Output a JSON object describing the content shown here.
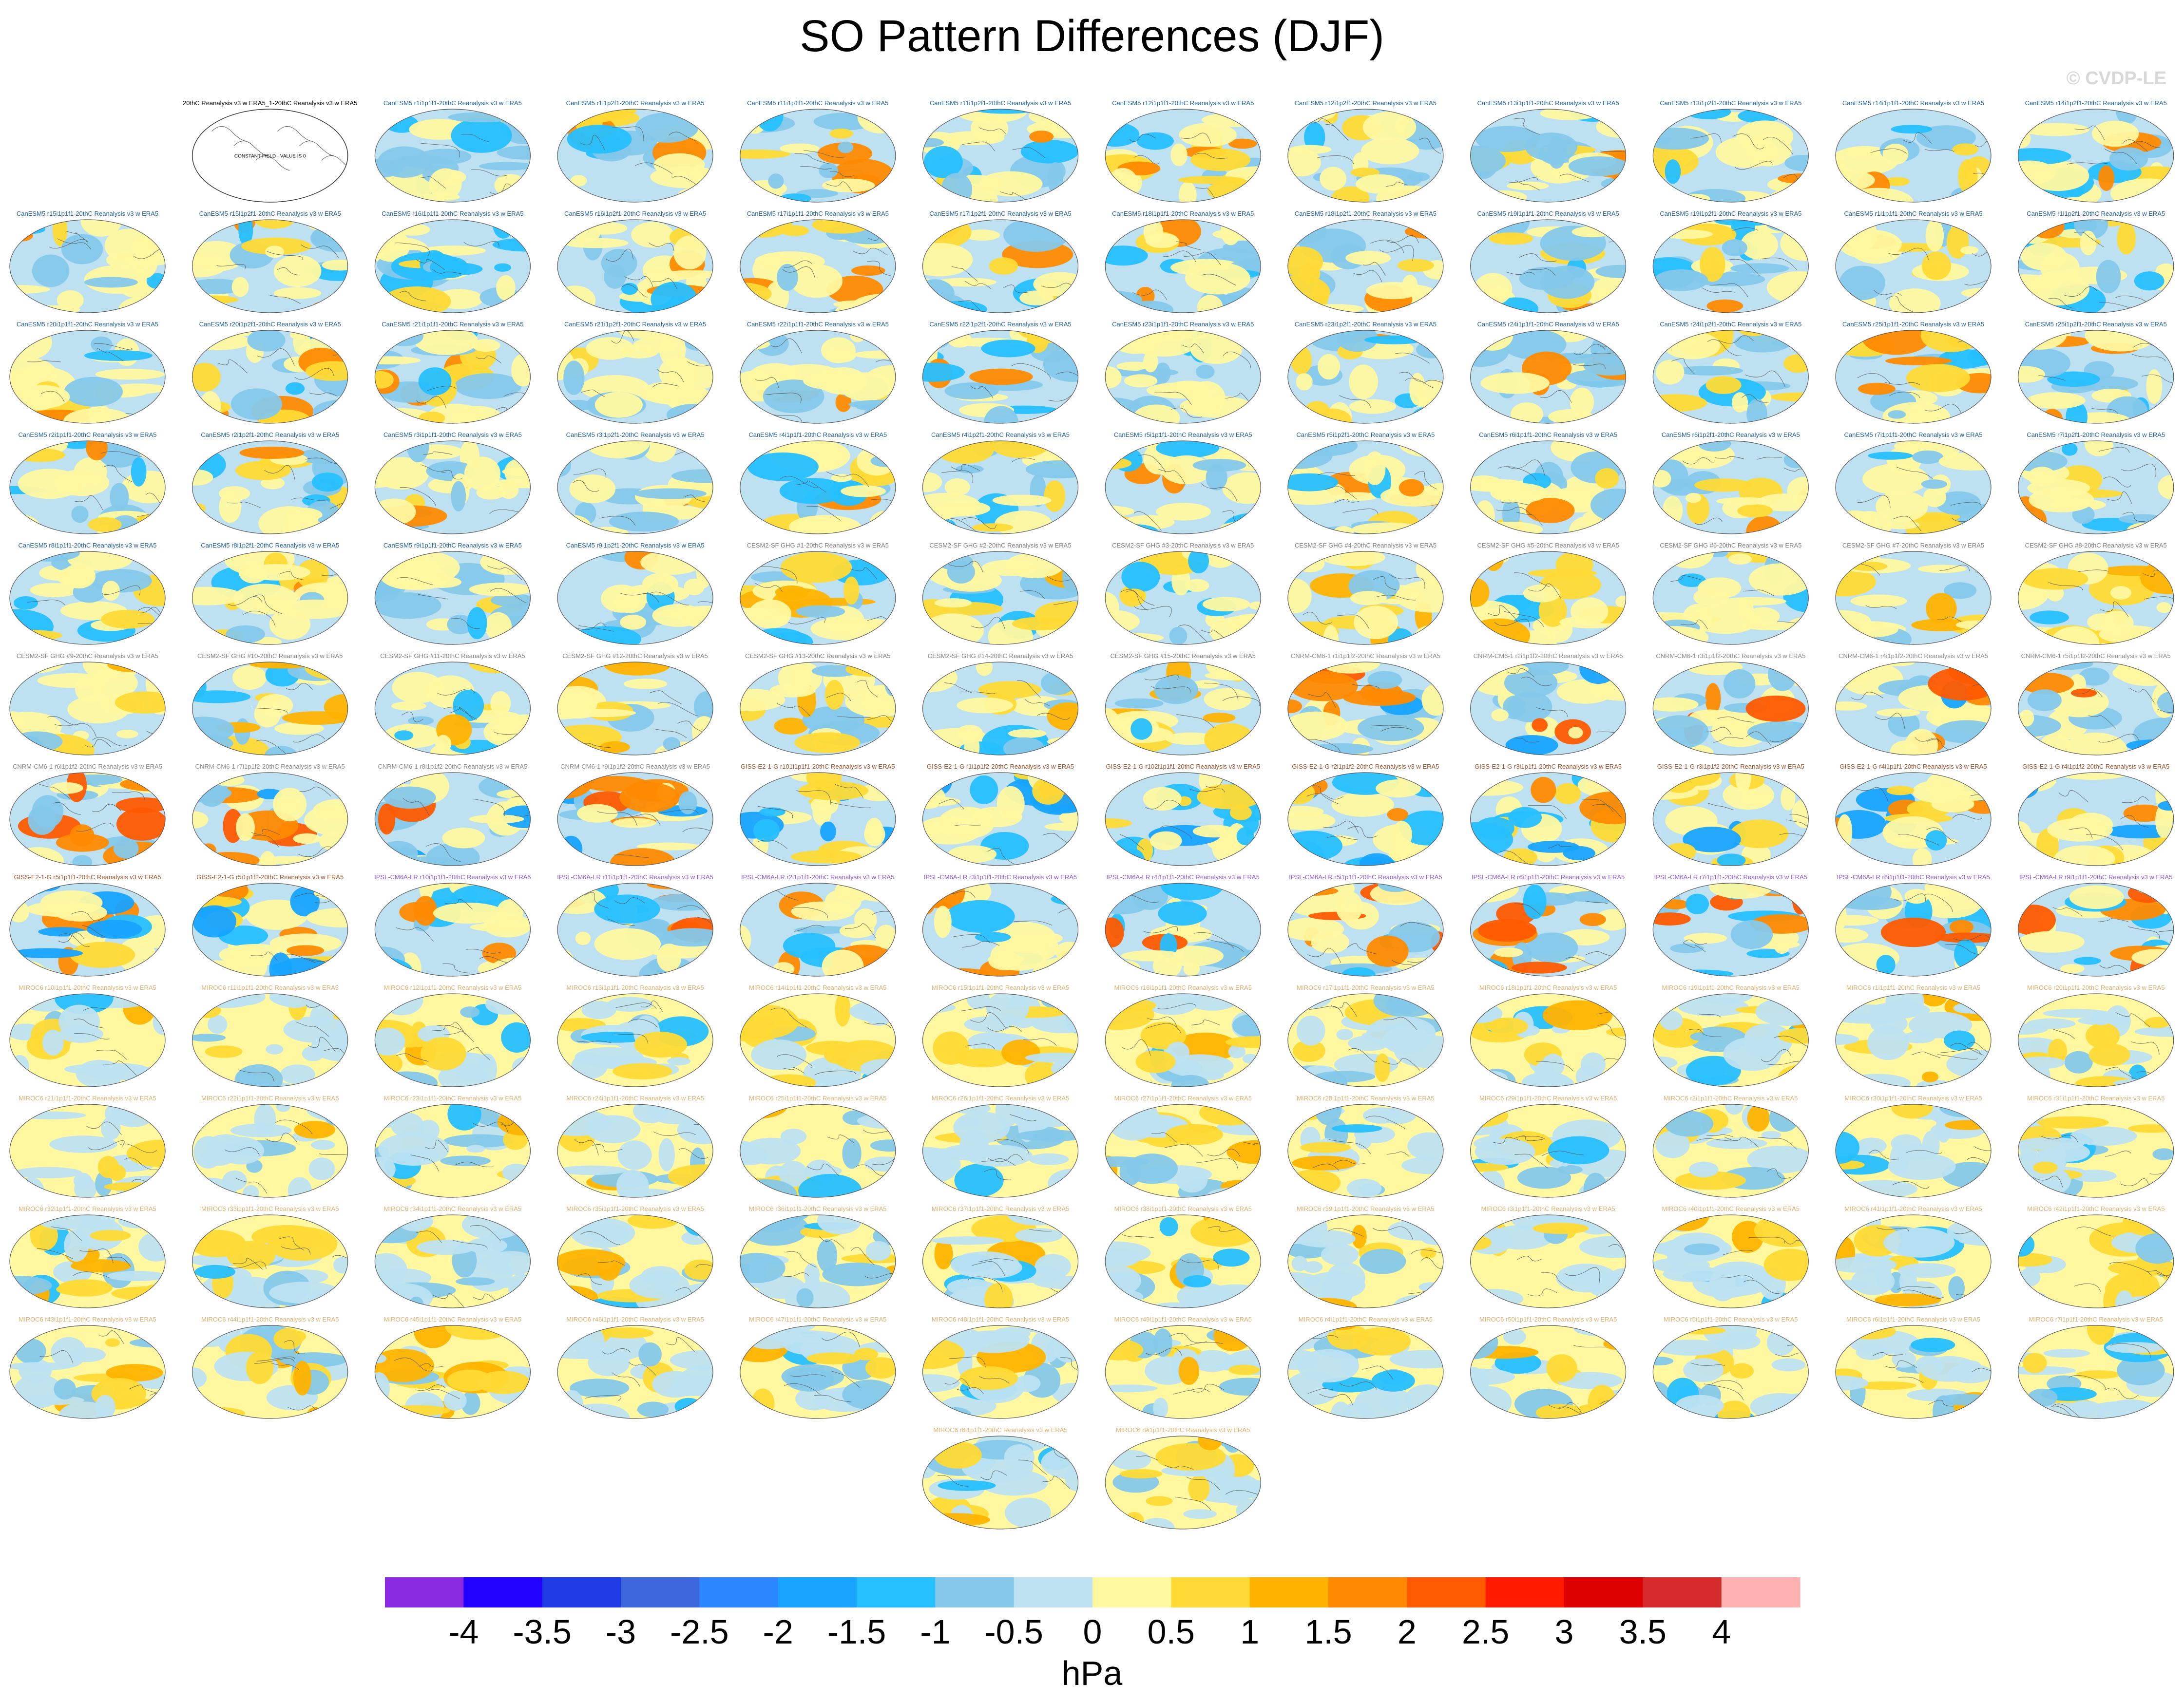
{
  "title": "SO Pattern Differences (DJF)",
  "watermark": "© CVDP-LE",
  "units": "hPa",
  "chart_data": {
    "type": "heatmap",
    "title": "SO Pattern Differences (DJF)",
    "colorbar": {
      "levels": [
        "-4",
        "-3.5",
        "-3",
        "-2.5",
        "-2",
        "-1.5",
        "-1",
        "-0.5",
        "0",
        "0.5",
        "1",
        "1.5",
        "2",
        "2.5",
        "3",
        "3.5",
        "4"
      ],
      "colors": [
        "#8a2be2",
        "#2200ff",
        "#1f3be6",
        "#3f67dd",
        "#2b86ff",
        "#17a3ff",
        "#26bfff",
        "#85c8ea",
        "#bde1f1",
        "#fff8a0",
        "#ffda35",
        "#ffb300",
        "#ff8a00",
        "#ff5a00",
        "#ff1a00",
        "#dd0000",
        "#d42a2a",
        "#ffb0b0"
      ],
      "label": "hPa"
    },
    "panels": [
      {
        "label": "20thC Reanalysis v3 w ERA5_1-20thC Reanalysis v3 w ERA5",
        "group": "obs",
        "note": "CONSTANT FIELD - VALUE IS 0"
      },
      {
        "label": "CanESM5 r1i1p1f1-20thC Reanalysis v3 w ERA5",
        "group": "canesm"
      },
      {
        "label": "CanESM5 r1i1p2f1-20thC Reanalysis v3 w ERA5",
        "group": "canesm"
      },
      {
        "label": "CanESM5 r11i1p1f1-20thC Reanalysis v3 w ERA5",
        "group": "canesm"
      },
      {
        "label": "CanESM5 r11i1p2f1-20thC Reanalysis v3 w ERA5",
        "group": "canesm"
      },
      {
        "label": "CanESM5 r12i1p1f1-20thC Reanalysis v3 w ERA5",
        "group": "canesm"
      },
      {
        "label": "CanESM5 r12i1p2f1-20thC Reanalysis v3 w ERA5",
        "group": "canesm"
      },
      {
        "label": "CanESM5 r13i1p1f1-20thC Reanalysis v3 w ERA5",
        "group": "canesm"
      },
      {
        "label": "CanESM5 r13i1p2f1-20thC Reanalysis v3 w ERA5",
        "group": "canesm"
      },
      {
        "label": "CanESM5 r14i1p1f1-20thC Reanalysis v3 w ERA5",
        "group": "canesm"
      },
      {
        "label": "CanESM5 r14i1p2f1-20thC Reanalysis v3 w ERA5",
        "group": "canesm"
      },
      {
        "label": "CanESM5 r15i1p1f1-20thC Reanalysis v3 w ERA5",
        "group": "canesm"
      },
      {
        "label": "CanESM5 r15i1p2f1-20thC Reanalysis v3 w ERA5",
        "group": "canesm"
      },
      {
        "label": "CanESM5 r16i1p1f1-20thC Reanalysis v3 w ERA5",
        "group": "canesm"
      },
      {
        "label": "CanESM5 r16i1p2f1-20thC Reanalysis v3 w ERA5",
        "group": "canesm"
      },
      {
        "label": "CanESM5 r17i1p1f1-20thC Reanalysis v3 w ERA5",
        "group": "canesm"
      },
      {
        "label": "CanESM5 r17i1p2f1-20thC Reanalysis v3 w ERA5",
        "group": "canesm"
      },
      {
        "label": "CanESM5 r18i1p1f1-20thC Reanalysis v3 w ERA5",
        "group": "canesm"
      },
      {
        "label": "CanESM5 r18i1p2f1-20thC Reanalysis v3 w ERA5",
        "group": "canesm"
      },
      {
        "label": "CanESM5 r19i1p1f1-20thC Reanalysis v3 w ERA5",
        "group": "canesm"
      },
      {
        "label": "CanESM5 r19i1p2f1-20thC Reanalysis v3 w ERA5",
        "group": "canesm"
      },
      {
        "label": "CanESM5 r1i1p1f1-20thC Reanalysis v3 w ERA5",
        "group": "canesm"
      },
      {
        "label": "CanESM5 r1i1p2f1-20thC Reanalysis v3 w ERA5",
        "group": "canesm"
      },
      {
        "label": "CanESM5 r20i1p1f1-20thC Reanalysis v3 w ERA5",
        "group": "canesm"
      },
      {
        "label": "CanESM5 r20i1p2f1-20thC Reanalysis v3 w ERA5",
        "group": "canesm"
      },
      {
        "label": "CanESM5 r21i1p1f1-20thC Reanalysis v3 w ERA5",
        "group": "canesm"
      },
      {
        "label": "CanESM5 r21i1p2f1-20thC Reanalysis v3 w ERA5",
        "group": "canesm"
      },
      {
        "label": "CanESM5 r22i1p1f1-20thC Reanalysis v3 w ERA5",
        "group": "canesm"
      },
      {
        "label": "CanESM5 r22i1p2f1-20thC Reanalysis v3 w ERA5",
        "group": "canesm"
      },
      {
        "label": "CanESM5 r23i1p1f1-20thC Reanalysis v3 w ERA5",
        "group": "canesm"
      },
      {
        "label": "CanESM5 r23i1p2f1-20thC Reanalysis v3 w ERA5",
        "group": "canesm"
      },
      {
        "label": "CanESM5 r24i1p1f1-20thC Reanalysis v3 w ERA5",
        "group": "canesm"
      },
      {
        "label": "CanESM5 r24i1p2f1-20thC Reanalysis v3 w ERA5",
        "group": "canesm"
      },
      {
        "label": "CanESM5 r25i1p1f1-20thC Reanalysis v3 w ERA5",
        "group": "canesm"
      },
      {
        "label": "CanESM5 r25i1p2f1-20thC Reanalysis v3 w ERA5",
        "group": "canesm"
      },
      {
        "label": "CanESM5 r2i1p1f1-20thC Reanalysis v3 w ERA5",
        "group": "canesm"
      },
      {
        "label": "CanESM5 r2i1p2f1-20thC Reanalysis v3 w ERA5",
        "group": "canesm"
      },
      {
        "label": "CanESM5 r3i1p1f1-20thC Reanalysis v3 w ERA5",
        "group": "canesm"
      },
      {
        "label": "CanESM5 r3i1p2f1-20thC Reanalysis v3 w ERA5",
        "group": "canesm"
      },
      {
        "label": "CanESM5 r4i1p1f1-20thC Reanalysis v3 w ERA5",
        "group": "canesm"
      },
      {
        "label": "CanESM5 r4i1p2f1-20thC Reanalysis v3 w ERA5",
        "group": "canesm"
      },
      {
        "label": "CanESM5 r5i1p1f1-20thC Reanalysis v3 w ERA5",
        "group": "canesm"
      },
      {
        "label": "CanESM5 r5i1p2f1-20thC Reanalysis v3 w ERA5",
        "group": "canesm"
      },
      {
        "label": "CanESM5 r6i1p1f1-20thC Reanalysis v3 w ERA5",
        "group": "canesm"
      },
      {
        "label": "CanESM5 r6i1p2f1-20thC Reanalysis v3 w ERA5",
        "group": "canesm"
      },
      {
        "label": "CanESM5 r7i1p1f1-20thC Reanalysis v3 w ERA5",
        "group": "canesm"
      },
      {
        "label": "CanESM5 r7i1p2f1-20thC Reanalysis v3 w ERA5",
        "group": "canesm"
      },
      {
        "label": "CanESM5 r8i1p1f1-20thC Reanalysis v3 w ERA5",
        "group": "canesm"
      },
      {
        "label": "CanESM5 r8i1p2f1-20thC Reanalysis v3 w ERA5",
        "group": "canesm"
      },
      {
        "label": "CanESM5 r9i1p1f1-20thC Reanalysis v3 w ERA5",
        "group": "canesm"
      },
      {
        "label": "CanESM5 r9i1p2f1-20thC Reanalysis v3 w ERA5",
        "group": "canesm"
      },
      {
        "label": "CESM2-SF GHG #1-20thC Reanalysis v3 w ERA5",
        "group": "cesm"
      },
      {
        "label": "CESM2-SF GHG #2-20thC Reanalysis v3 w ERA5",
        "group": "cesm"
      },
      {
        "label": "CESM2-SF GHG #3-20thC Reanalysis v3 w ERA5",
        "group": "cesm"
      },
      {
        "label": "CESM2-SF GHG #4-20thC Reanalysis v3 w ERA5",
        "group": "cesm"
      },
      {
        "label": "CESM2-SF GHG #5-20thC Reanalysis v3 w ERA5",
        "group": "cesm"
      },
      {
        "label": "CESM2-SF GHG #6-20thC Reanalysis v3 w ERA5",
        "group": "cesm"
      },
      {
        "label": "CESM2-SF GHG #7-20thC Reanalysis v3 w ERA5",
        "group": "cesm"
      },
      {
        "label": "CESM2-SF GHG #8-20thC Reanalysis v3 w ERA5",
        "group": "cesm"
      },
      {
        "label": "CESM2-SF GHG #9-20thC Reanalysis v3 w ERA5",
        "group": "cesm"
      },
      {
        "label": "CESM2-SF GHG #10-20thC Reanalysis v3 w ERA5",
        "group": "cesm"
      },
      {
        "label": "CESM2-SF GHG #11-20thC Reanalysis v3 w ERA5",
        "group": "cesm"
      },
      {
        "label": "CESM2-SF GHG #12-20thC Reanalysis v3 w ERA5",
        "group": "cesm"
      },
      {
        "label": "CESM2-SF GHG #13-20thC Reanalysis v3 w ERA5",
        "group": "cesm"
      },
      {
        "label": "CESM2-SF GHG #14-20thC Reanalysis v3 w ERA5",
        "group": "cesm"
      },
      {
        "label": "CESM2-SF GHG #15-20thC Reanalysis v3 w ERA5",
        "group": "cesm"
      },
      {
        "label": "CNRM-CM6-1 r1i1p1f2-20thC Reanalysis v3 w ERA5",
        "group": "cnrm"
      },
      {
        "label": "CNRM-CM6-1 r2i1p1f2-20thC Reanalysis v3 w ERA5",
        "group": "cnrm"
      },
      {
        "label": "CNRM-CM6-1 r3i1p1f2-20thC Reanalysis v3 w ERA5",
        "group": "cnrm"
      },
      {
        "label": "CNRM-CM6-1 r4i1p1f2-20thC Reanalysis v3 w ERA5",
        "group": "cnrm"
      },
      {
        "label": "CNRM-CM6-1 r5i1p1f2-20thC Reanalysis v3 w ERA5",
        "group": "cnrm"
      },
      {
        "label": "CNRM-CM6-1 r6i1p1f2-20thC Reanalysis v3 w ERA5",
        "group": "cnrm"
      },
      {
        "label": "CNRM-CM6-1 r7i1p1f2-20thC Reanalysis v3 w ERA5",
        "group": "cnrm"
      },
      {
        "label": "CNRM-CM6-1 r8i1p1f2-20thC Reanalysis v3 w ERA5",
        "group": "cnrm"
      },
      {
        "label": "CNRM-CM6-1 r9i1p1f2-20thC Reanalysis v3 w ERA5",
        "group": "cnrm"
      },
      {
        "label": "GISS-E2-1-G r101i1p1f1-20thC Reanalysis v3 w ERA5",
        "group": "giss"
      },
      {
        "label": "GISS-E2-1-G r1i1p1f2-20thC Reanalysis v3 w ERA5",
        "group": "giss"
      },
      {
        "label": "GISS-E2-1-G r102i1p1f1-20thC Reanalysis v3 w ERA5",
        "group": "giss"
      },
      {
        "label": "GISS-E2-1-G r2i1p1f2-20thC Reanalysis v3 w ERA5",
        "group": "giss"
      },
      {
        "label": "GISS-E2-1-G r3i1p1f1-20thC Reanalysis v3 w ERA5",
        "group": "giss"
      },
      {
        "label": "GISS-E2-1-G r3i1p1f2-20thC Reanalysis v3 w ERA5",
        "group": "giss"
      },
      {
        "label": "GISS-E2-1-G r4i1p1f1-20thC Reanalysis v3 w ERA5",
        "group": "giss"
      },
      {
        "label": "GISS-E2-1-G r4i1p1f2-20thC Reanalysis v3 w ERA5",
        "group": "giss"
      },
      {
        "label": "GISS-E2-1-G r5i1p1f1-20thC Reanalysis v3 w ERA5",
        "group": "giss"
      },
      {
        "label": "GISS-E2-1-G r5i1p1f2-20thC Reanalysis v3 w ERA5",
        "group": "giss"
      },
      {
        "label": "IPSL-CM6A-LR r10i1p1f1-20thC Reanalysis v3 w ERA5",
        "group": "ipsl"
      },
      {
        "label": "IPSL-CM6A-LR r11i1p1f1-20thC Reanalysis v3 w ERA5",
        "group": "ipsl"
      },
      {
        "label": "IPSL-CM6A-LR r2i1p1f1-20thC Reanalysis v3 w ERA5",
        "group": "ipsl"
      },
      {
        "label": "IPSL-CM6A-LR r3i1p1f1-20thC Reanalysis v3 w ERA5",
        "group": "ipsl"
      },
      {
        "label": "IPSL-CM6A-LR r4i1p1f1-20thC Reanalysis v3 w ERA5",
        "group": "ipsl"
      },
      {
        "label": "IPSL-CM6A-LR r5i1p1f1-20thC Reanalysis v3 w ERA5",
        "group": "ipsl"
      },
      {
        "label": "IPSL-CM6A-LR r6i1p1f1-20thC Reanalysis v3 w ERA5",
        "group": "ipsl"
      },
      {
        "label": "IPSL-CM6A-LR r7i1p1f1-20thC Reanalysis v3 w ERA5",
        "group": "ipsl"
      },
      {
        "label": "IPSL-CM6A-LR r8i1p1f1-20thC Reanalysis v3 w ERA5",
        "group": "ipsl"
      },
      {
        "label": "IPSL-CM6A-LR r9i1p1f1-20thC Reanalysis v3 w ERA5",
        "group": "ipsl"
      },
      {
        "label": "MIROC6 r10i1p1f1-20thC Reanalysis v3 w ERA5",
        "group": "miroc"
      },
      {
        "label": "MIROC6 r11i1p1f1-20thC Reanalysis v3 w ERA5",
        "group": "miroc"
      },
      {
        "label": "MIROC6 r12i1p1f1-20thC Reanalysis v3 w ERA5",
        "group": "miroc"
      },
      {
        "label": "MIROC6 r13i1p1f1-20thC Reanalysis v3 w ERA5",
        "group": "miroc"
      },
      {
        "label": "MIROC6 r14i1p1f1-20thC Reanalysis v3 w ERA5",
        "group": "miroc"
      },
      {
        "label": "MIROC6 r15i1p1f1-20thC Reanalysis v3 w ERA5",
        "group": "miroc"
      },
      {
        "label": "MIROC6 r16i1p1f1-20thC Reanalysis v3 w ERA5",
        "group": "miroc"
      },
      {
        "label": "MIROC6 r17i1p1f1-20thC Reanalysis v3 w ERA5",
        "group": "miroc"
      },
      {
        "label": "MIROC6 r18i1p1f1-20thC Reanalysis v3 w ERA5",
        "group": "miroc"
      },
      {
        "label": "MIROC6 r19i1p1f1-20thC Reanalysis v3 w ERA5",
        "group": "miroc"
      },
      {
        "label": "MIROC6 r1i1p1f1-20thC Reanalysis v3 w ERA5",
        "group": "miroc"
      },
      {
        "label": "MIROC6 r20i1p1f1-20thC Reanalysis v3 w ERA5",
        "group": "miroc"
      },
      {
        "label": "MIROC6 r21i1p1f1-20thC Reanalysis v3 w ERA5",
        "group": "miroc"
      },
      {
        "label": "MIROC6 r22i1p1f1-20thC Reanalysis v3 w ERA5",
        "group": "miroc"
      },
      {
        "label": "MIROC6 r23i1p1f1-20thC Reanalysis v3 w ERA5",
        "group": "miroc"
      },
      {
        "label": "MIROC6 r24i1p1f1-20thC Reanalysis v3 w ERA5",
        "group": "miroc"
      },
      {
        "label": "MIROC6 r25i1p1f1-20thC Reanalysis v3 w ERA5",
        "group": "miroc"
      },
      {
        "label": "MIROC6 r26i1p1f1-20thC Reanalysis v3 w ERA5",
        "group": "miroc"
      },
      {
        "label": "MIROC6 r27i1p1f1-20thC Reanalysis v3 w ERA5",
        "group": "miroc"
      },
      {
        "label": "MIROC6 r28i1p1f1-20thC Reanalysis v3 w ERA5",
        "group": "miroc"
      },
      {
        "label": "MIROC6 r29i1p1f1-20thC Reanalysis v3 w ERA5",
        "group": "miroc"
      },
      {
        "label": "MIROC6 r2i1p1f1-20thC Reanalysis v3 w ERA5",
        "group": "miroc"
      },
      {
        "label": "MIROC6 r30i1p1f1-20thC Reanalysis v3 w ERA5",
        "group": "miroc"
      },
      {
        "label": "MIROC6 r31i1p1f1-20thC Reanalysis v3 w ERA5",
        "group": "miroc"
      },
      {
        "label": "MIROC6 r32i1p1f1-20thC Reanalysis v3 w ERA5",
        "group": "miroc"
      },
      {
        "label": "MIROC6 r33i1p1f1-20thC Reanalysis v3 w ERA5",
        "group": "miroc"
      },
      {
        "label": "MIROC6 r34i1p1f1-20thC Reanalysis v3 w ERA5",
        "group": "miroc"
      },
      {
        "label": "MIROC6 r35i1p1f1-20thC Reanalysis v3 w ERA5",
        "group": "miroc"
      },
      {
        "label": "MIROC6 r36i1p1f1-20thC Reanalysis v3 w ERA5",
        "group": "miroc"
      },
      {
        "label": "MIROC6 r37i1p1f1-20thC Reanalysis v3 w ERA5",
        "group": "miroc"
      },
      {
        "label": "MIROC6 r38i1p1f1-20thC Reanalysis v3 w ERA5",
        "group": "miroc"
      },
      {
        "label": "MIROC6 r39i1p1f1-20thC Reanalysis v3 w ERA5",
        "group": "miroc"
      },
      {
        "label": "MIROC6 r3i1p1f1-20thC Reanalysis v3 w ERA5",
        "group": "miroc"
      },
      {
        "label": "MIROC6 r40i1p1f1-20thC Reanalysis v3 w ERA5",
        "group": "miroc"
      },
      {
        "label": "MIROC6 r41i1p1f1-20thC Reanalysis v3 w ERA5",
        "group": "miroc"
      },
      {
        "label": "MIROC6 r42i1p1f1-20thC Reanalysis v3 w ERA5",
        "group": "miroc"
      },
      {
        "label": "MIROC6 r43i1p1f1-20thC Reanalysis v3 w ERA5",
        "group": "miroc"
      },
      {
        "label": "MIROC6 r44i1p1f1-20thC Reanalysis v3 w ERA5",
        "group": "miroc"
      },
      {
        "label": "MIROC6 r45i1p1f1-20thC Reanalysis v3 w ERA5",
        "group": "miroc"
      },
      {
        "label": "MIROC6 r46i1p1f1-20thC Reanalysis v3 w ERA5",
        "group": "miroc"
      },
      {
        "label": "MIROC6 r47i1p1f1-20thC Reanalysis v3 w ERA5",
        "group": "miroc"
      },
      {
        "label": "MIROC6 r48i1p1f1-20thC Reanalysis v3 w ERA5",
        "group": "miroc"
      },
      {
        "label": "MIROC6 r49i1p1f1-20thC Reanalysis v3 w ERA5",
        "group": "miroc"
      },
      {
        "label": "MIROC6 r4i1p1f1-20thC Reanalysis v3 w ERA5",
        "group": "miroc"
      },
      {
        "label": "MIROC6 r50i1p1f1-20thC Reanalysis v3 w ERA5",
        "group": "miroc"
      },
      {
        "label": "MIROC6 r5i1p1f1-20thC Reanalysis v3 w ERA5",
        "group": "miroc"
      },
      {
        "label": "MIROC6 r6i1p1f1-20thC Reanalysis v3 w ERA5",
        "group": "miroc"
      },
      {
        "label": "MIROC6 r7i1p1f1-20thC Reanalysis v3 w ERA5",
        "group": "miroc"
      },
      {
        "label": "MIROC6 r8i1p1f1-20thC Reanalysis v3 w ERA5",
        "group": "miroc"
      },
      {
        "label": "MIROC6 r9i1p1f1-20thC Reanalysis v3 w ERA5",
        "group": "miroc"
      }
    ],
    "group_colors": {
      "obs": "#000000",
      "canesm": "#1f5fa0",
      "cesm": "#7c7c7c",
      "cnrm": "#8a8a8a",
      "giss": "#a0522d",
      "ipsl": "#8a5ad0",
      "miroc": "#e0b070"
    }
  }
}
